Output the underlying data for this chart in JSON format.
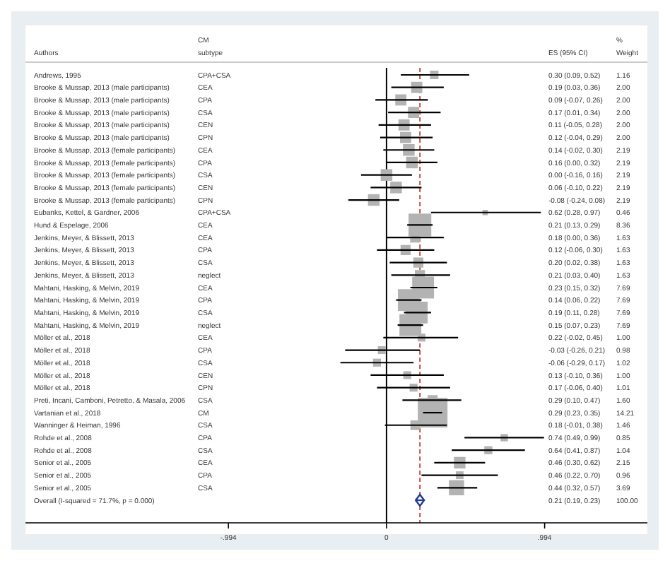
{
  "chart_data": [
    {
      "type": "scatter",
      "orientation": "horizontal",
      "ylabel": "Authors",
      "y2label": "CM subtype",
      "categories": [
        "Andrews, 1995",
        "Brooke & Mussap, 2013 (male participants)",
        "Brooke & Mussap, 2013 (male participants)",
        "Brooke & Mussap, 2013 (male participants)",
        "Brooke & Mussap, 2013 (male participants)",
        "Brooke & Mussap, 2013 (male participants)",
        "Brooke & Mussap, 2013 (female participants)",
        "Brooke & Mussap, 2013 (female participants)",
        "Brooke & Mussap, 2013 (female participants)",
        "Brooke & Mussap, 2013 (female participants)",
        "Brooke & Mussap, 2013 (female participants)",
        "Eubanks, Kettel, & Gardner, 2006",
        "Hund & Espelage, 2006",
        "Jenkins, Meyer, & Blissett, 2013",
        "Jenkins, Meyer, & Blissett, 2013",
        "Jenkins, Meyer, & Blissett, 2013",
        "Jenkins, Meyer, & Blissett, 2013",
        "Mahtani, Hasking, & Melvin, 2019",
        "Mahtani, Hasking, & Melvin, 2019",
        "Mahtani, Hasking, & Melvin, 2019",
        "Mahtani, Hasking, & Melvin, 2019",
        "Möller et al., 2018",
        "Möller et al., 2018",
        "Möller et al., 2018",
        "Möller et al., 2018",
        "Möller et al., 2018",
        "Preti, Incani, Camboni, Petretto, & Masala, 2006",
        "Vartanian et al., 2018",
        "Wanninger & Heiman, 1996",
        "Rohde et al., 2008",
        "Rohde et al., 2008",
        "Senior et al., 2005",
        "Senior et al., 2005",
        "Senior et al., 2005",
        "Overall  (I-squared = 71.7%, p = 0.000)"
      ],
      "y2_categories": [
        "CPA+CSA",
        "CEA",
        "CPA",
        "CSA",
        "CEN",
        "CPN",
        "CEA",
        "CPA",
        "CSA",
        "CEN",
        "CPN",
        "CPA+CSA",
        "CEA",
        "CEA",
        "CPA",
        "CSA",
        "neglect",
        "CEA",
        "CPA",
        "CSA",
        "neglect",
        "CEA",
        "CPA",
        "CSA",
        "CEN",
        "CPN",
        "CSA",
        "CM",
        "CSA",
        "CPA",
        "CSA",
        "CEA",
        "CPA",
        "CSA",
        null
      ],
      "series": [
        {
          "color": "#b3b3b3",
          "marker": "square",
          "values": [
            0.3,
            0.19,
            0.09,
            0.17,
            0.11,
            0.12,
            0.14,
            0.16,
            0.0,
            0.06,
            -0.08,
            0.62,
            0.21,
            0.18,
            0.12,
            0.2,
            0.21,
            0.23,
            0.14,
            0.19,
            0.15,
            0.22,
            -0.03,
            -0.06,
            0.13,
            0.17,
            0.29,
            0.29,
            0.18,
            0.74,
            0.64,
            0.46,
            0.46,
            0.44,
            null
          ],
          "errors": [
            [
              0.09,
              0.52
            ],
            [
              0.03,
              0.36
            ],
            [
              -0.07,
              0.26
            ],
            [
              0.01,
              0.34
            ],
            [
              -0.05,
              0.28
            ],
            [
              -0.04,
              0.29
            ],
            [
              -0.02,
              0.3
            ],
            [
              0.0,
              0.32
            ],
            [
              -0.16,
              0.16
            ],
            [
              -0.1,
              0.22
            ],
            [
              -0.24,
              0.08
            ],
            [
              0.28,
              0.97
            ],
            [
              0.13,
              0.29
            ],
            [
              0.0,
              0.36
            ],
            [
              -0.06,
              0.3
            ],
            [
              0.02,
              0.38
            ],
            [
              0.03,
              0.4
            ],
            [
              0.15,
              0.32
            ],
            [
              0.06,
              0.22
            ],
            [
              0.11,
              0.28
            ],
            [
              0.07,
              0.23
            ],
            [
              -0.02,
              0.45
            ],
            [
              -0.26,
              0.21
            ],
            [
              -0.29,
              0.17
            ],
            [
              -0.1,
              0.36
            ],
            [
              -0.06,
              0.4
            ],
            [
              0.1,
              0.47
            ],
            [
              0.23,
              0.35
            ],
            [
              -0.01,
              0.38
            ],
            [
              0.49,
              0.99
            ],
            [
              0.41,
              0.87
            ],
            [
              0.3,
              0.62
            ],
            [
              0.22,
              0.7
            ],
            [
              0.32,
              0.57
            ],
            null
          ],
          "sizes": [
            0.082,
            0.141,
            0.141,
            0.141,
            0.141,
            0.141,
            0.154,
            0.154,
            0.154,
            0.154,
            0.154,
            0.032,
            0.588,
            0.115,
            0.115,
            0.115,
            0.115,
            0.541,
            0.541,
            0.541,
            0.541,
            0.07,
            0.069,
            0.072,
            0.07,
            0.071,
            0.113,
            1,
            0.103,
            0.06,
            0.073,
            0.151,
            0.068,
            0.26,
            null
          ]
        },
        {
          "color": "#1f3a93",
          "marker": "diamond",
          "values": [
            null,
            null,
            null,
            null,
            null,
            null,
            null,
            null,
            null,
            null,
            null,
            null,
            null,
            null,
            null,
            null,
            null,
            null,
            null,
            null,
            null,
            null,
            null,
            null,
            null,
            null,
            null,
            null,
            null,
            null,
            null,
            null,
            null,
            null,
            0.21
          ],
          "errors": [
            null,
            null,
            null,
            null,
            null,
            null,
            null,
            null,
            null,
            null,
            null,
            null,
            null,
            null,
            null,
            null,
            null,
            null,
            null,
            null,
            null,
            null,
            null,
            null,
            null,
            null,
            null,
            null,
            null,
            null,
            null,
            null,
            null,
            null,
            [
              0.19,
              0.23
            ]
          ]
        }
      ],
      "xlim": [
        -2.27,
        1.64
      ],
      "xticks": [
        {
          "value": -0.994,
          "label": "-.994"
        },
        0,
        {
          "value": 0.994,
          "label": ".994"
        }
      ],
      "ref_lines": [
        {
          "axis": "x",
          "value": 0,
          "color": "#000000",
          "line_style": "solid"
        },
        {
          "axis": "x",
          "value": 0.21,
          "color": "#c0392b",
          "line_style": "dashed"
        }
      ]
    },
    {
      "type": "other",
      "annotations": [
        "ES (95% CI)",
        "% Weight",
        "0.30 (0.09, 0.52)",
        "1.16",
        "0.19 (0.03, 0.36)",
        "2.00",
        "0.09 (-0.07, 0.26)",
        "2.00",
        "0.17 (0.01, 0.34)",
        "2.00",
        "0.11 (-0.05, 0.28)",
        "2.00",
        "0.12 (-0.04, 0.29)",
        "2.00",
        "0.14 (-0.02, 0.30)",
        "2.19",
        "0.16 (0.00, 0.32)",
        "2.19",
        "0.00 (-0.16, 0.16)",
        "2.19",
        "0.06 (-0.10, 0.22)",
        "2.19",
        "-0.08 (-0.24, 0.08)",
        "2.19",
        "0.62 (0.28, 0.97)",
        "0.46",
        "0.21 (0.13, 0.29)",
        "8.36",
        "0.18 (0.00, 0.36)",
        "1.63",
        "0.12 (-0.06, 0.30)",
        "1.63",
        "0.20 (0.02, 0.38)",
        "1.63",
        "0.21 (0.03, 0.40)",
        "1.63",
        "0.23 (0.15, 0.32)",
        "7.69",
        "0.14 (0.06, 0.22)",
        "7.69",
        "0.19 (0.11, 0.28)",
        "7.69",
        "0.15 (0.07, 0.23)",
        "7.69",
        "0.22 (-0.02, 0.45)",
        "1.00",
        "-0.03 (-0.26, 0.21)",
        "0.98",
        "-0.06 (-0.29, 0.17)",
        "1.02",
        "0.13 (-0.10, 0.36)",
        "1.00",
        "0.17 (-0.06, 0.40)",
        "1.01",
        "0.29 (0.10, 0.47)",
        "1.60",
        "0.29 (0.23, 0.35)",
        "14.21",
        "0.18 (-0.01, 0.38)",
        "1.46",
        "0.74 (0.49, 0.99)",
        "0.85",
        "0.64 (0.41, 0.87)",
        "1.04",
        "0.46 (0.30, 0.62)",
        "2.15",
        "0.46 (0.22, 0.70)",
        "0.96",
        "0.44 (0.32, 0.57)",
        "3.69",
        "0.21 (0.19, 0.23)",
        "100.00"
      ]
    }
  ]
}
